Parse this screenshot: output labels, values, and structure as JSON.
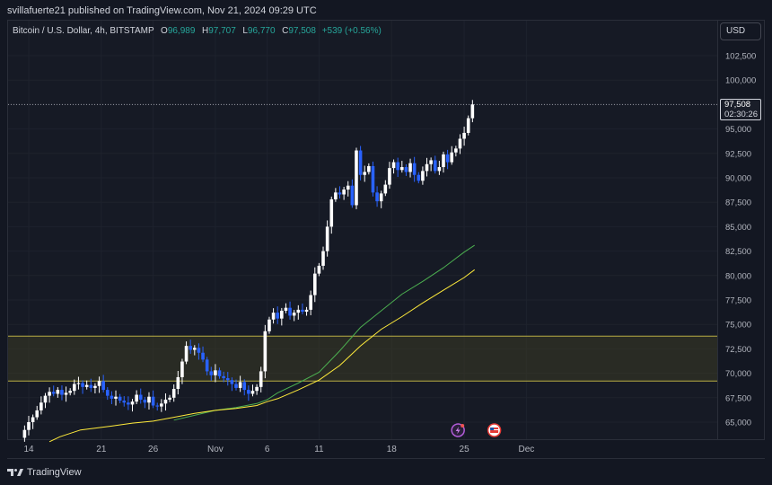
{
  "publish": {
    "text": "svillafuerte21 published on TradingView.com, Nov 21, 2024 09:29 UTC"
  },
  "legend": {
    "symbol": "Bitcoin / U.S. Dollar, 4h, BITSTAMP",
    "o_label": "O",
    "o_value": "96,989",
    "h_label": "H",
    "h_value": "97,707",
    "l_label": "L",
    "l_value": "96,770",
    "c_label": "C",
    "c_value": "97,508",
    "change": "+539 (+0.56%)"
  },
  "price_axis": {
    "currency": "USD",
    "last_price": "97,508",
    "countdown": "02:30:26"
  },
  "footer": {
    "brand": "TradingView"
  },
  "colors": {
    "background": "#131722",
    "grid": "#1e222d",
    "up": "#ffffff",
    "down": "#2962ff",
    "ma_fast": "#4caf50",
    "ma_slow": "#ffeb3b",
    "zone": "#6b6a2e"
  },
  "icons": {
    "event_1": "flash-icon",
    "event_2": "us-flag-icon",
    "brand": "tradingview-logo-icon"
  },
  "chart_data": {
    "type": "candlestick",
    "title": "",
    "xlabel": "",
    "ylabel": "",
    "ylim": [
      62500,
      105000
    ],
    "yticks": [
      65000,
      67500,
      70000,
      72500,
      75000,
      77500,
      80000,
      82500,
      85000,
      87500,
      90000,
      92500,
      95000,
      97500,
      100000,
      102500
    ],
    "ytick_labels": [
      "65,000",
      "67,500",
      "70,000",
      "72,500",
      "75,000",
      "77,500",
      "80,000",
      "82,500",
      "85,000",
      "87,500",
      "90,000",
      "92,500",
      "95,000",
      "97,500",
      "100,000",
      "102,500"
    ],
    "xticks": [
      "14",
      "21",
      "26",
      "Nov",
      "6",
      "11",
      "18",
      "25",
      "Dec"
    ],
    "xtick_days": [
      14,
      21,
      26,
      32,
      37,
      42,
      49,
      56,
      62
    ],
    "x_start_day": 13.0,
    "x_end_day": 68.2,
    "support_zone": [
      69200,
      73800
    ],
    "last_price": 97508,
    "grid": true,
    "legend": "top-left",
    "series": [
      {
        "kind": "close_path",
        "points": [
          [
            13.0,
            63400
          ],
          [
            13.6,
            64200
          ],
          [
            14.0,
            65000
          ],
          [
            14.4,
            65500
          ],
          [
            14.8,
            66200
          ],
          [
            15.2,
            67000
          ],
          [
            15.6,
            67700
          ],
          [
            16.0,
            68100
          ],
          [
            16.4,
            67900
          ],
          [
            16.8,
            68300
          ],
          [
            17.2,
            67800
          ],
          [
            17.6,
            68000
          ],
          [
            18.0,
            68200
          ],
          [
            18.4,
            68900
          ],
          [
            18.8,
            69000
          ],
          [
            19.2,
            68600
          ],
          [
            19.6,
            68800
          ],
          [
            20.0,
            68500
          ],
          [
            20.4,
            68700
          ],
          [
            20.8,
            69200
          ],
          [
            21.2,
            68300
          ],
          [
            21.6,
            67700
          ],
          [
            22.0,
            67400
          ],
          [
            22.4,
            67600
          ],
          [
            22.8,
            67200
          ],
          [
            23.2,
            67000
          ],
          [
            23.6,
            66800
          ],
          [
            24.0,
            67100
          ],
          [
            24.4,
            67800
          ],
          [
            24.8,
            67300
          ],
          [
            25.2,
            67000
          ],
          [
            25.6,
            67600
          ],
          [
            26.0,
            66700
          ],
          [
            26.4,
            66600
          ],
          [
            26.8,
            66900
          ],
          [
            27.2,
            67300
          ],
          [
            27.6,
            67500
          ],
          [
            28.0,
            68400
          ],
          [
            28.4,
            69600
          ],
          [
            28.8,
            71200
          ],
          [
            29.2,
            72800
          ],
          [
            29.6,
            72400
          ],
          [
            30.0,
            72600
          ],
          [
            30.4,
            72100
          ],
          [
            30.8,
            71400
          ],
          [
            31.2,
            70200
          ],
          [
            31.6,
            69800
          ],
          [
            32.0,
            70300
          ],
          [
            32.4,
            69700
          ],
          [
            32.8,
            69500
          ],
          [
            33.2,
            69300
          ],
          [
            33.6,
            68900
          ],
          [
            34.0,
            68500
          ],
          [
            34.4,
            69100
          ],
          [
            34.8,
            68300
          ],
          [
            35.2,
            67900
          ],
          [
            35.6,
            68200
          ],
          [
            36.0,
            68600
          ],
          [
            36.4,
            70200
          ],
          [
            36.8,
            74300
          ],
          [
            37.2,
            75500
          ],
          [
            37.6,
            76200
          ],
          [
            38.0,
            75600
          ],
          [
            38.4,
            76400
          ],
          [
            38.8,
            76700
          ],
          [
            39.2,
            75900
          ],
          [
            39.6,
            76200
          ],
          [
            40.0,
            76500
          ],
          [
            40.4,
            76300
          ],
          [
            40.8,
            76500
          ],
          [
            41.2,
            78000
          ],
          [
            41.6,
            80200
          ],
          [
            42.0,
            81000
          ],
          [
            42.4,
            82500
          ],
          [
            42.8,
            85000
          ],
          [
            43.2,
            87800
          ],
          [
            43.6,
            88500
          ],
          [
            44.0,
            88300
          ],
          [
            44.4,
            88800
          ],
          [
            44.8,
            89200
          ],
          [
            45.2,
            87200
          ],
          [
            45.6,
            92800
          ],
          [
            46.0,
            90300
          ],
          [
            46.4,
            90600
          ],
          [
            46.8,
            91200
          ],
          [
            47.2,
            88500
          ],
          [
            47.6,
            87600
          ],
          [
            48.0,
            88400
          ],
          [
            48.4,
            89300
          ],
          [
            48.8,
            91000
          ],
          [
            49.2,
            91600
          ],
          [
            49.6,
            90800
          ],
          [
            50.0,
            91100
          ],
          [
            50.4,
            90600
          ],
          [
            50.8,
            91500
          ],
          [
            51.2,
            90300
          ],
          [
            51.6,
            89700
          ],
          [
            52.0,
            90700
          ],
          [
            52.4,
            91400
          ],
          [
            52.8,
            91800
          ],
          [
            53.2,
            90700
          ],
          [
            53.6,
            91100
          ],
          [
            54.0,
            92400
          ],
          [
            54.4,
            91600
          ],
          [
            54.8,
            92600
          ],
          [
            55.2,
            93000
          ],
          [
            55.6,
            94000
          ],
          [
            56.0,
            94600
          ],
          [
            56.4,
            96100
          ],
          [
            56.8,
            97508
          ]
        ]
      },
      {
        "name": "",
        "kind": "ma_fast",
        "points": [
          [
            28,
            65200
          ],
          [
            30,
            65700
          ],
          [
            32,
            66200
          ],
          [
            34,
            66500
          ],
          [
            36,
            66900
          ],
          [
            37,
            67300
          ],
          [
            38,
            68000
          ],
          [
            40,
            69000
          ],
          [
            42,
            70100
          ],
          [
            44,
            72300
          ],
          [
            46,
            74700
          ],
          [
            48,
            76400
          ],
          [
            50,
            78100
          ],
          [
            52,
            79400
          ],
          [
            54,
            80800
          ],
          [
            56,
            82400
          ],
          [
            57,
            83100
          ]
        ]
      },
      {
        "name": "",
        "kind": "ma_slow",
        "points": [
          [
            16,
            63000
          ],
          [
            17,
            63500
          ],
          [
            19,
            64200
          ],
          [
            22,
            64600
          ],
          [
            24,
            64900
          ],
          [
            26,
            65100
          ],
          [
            28,
            65500
          ],
          [
            30,
            65900
          ],
          [
            32,
            66200
          ],
          [
            34,
            66400
          ],
          [
            36,
            66700
          ],
          [
            37,
            67100
          ],
          [
            38,
            67400
          ],
          [
            40,
            68300
          ],
          [
            42,
            69300
          ],
          [
            44,
            70800
          ],
          [
            46,
            72800
          ],
          [
            48,
            74500
          ],
          [
            50,
            75800
          ],
          [
            52,
            77200
          ],
          [
            54,
            78500
          ],
          [
            56,
            79800
          ],
          [
            57,
            80600
          ]
        ]
      }
    ],
    "events": [
      {
        "day": 55.4,
        "icon": "flash-icon"
      },
      {
        "day": 58.9,
        "icon": "us-flag-icon"
      }
    ]
  }
}
